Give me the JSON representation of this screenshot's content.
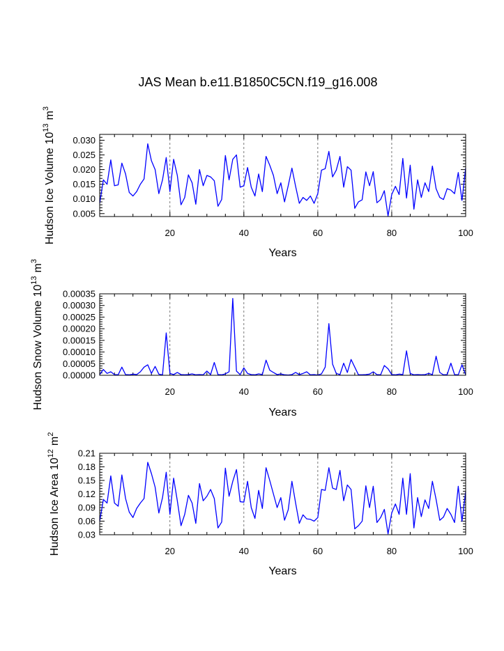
{
  "title": "JAS Mean b.e11.B1850C5CN.f19_g16.008",
  "chart_data": [
    {
      "type": "line",
      "ylabel": "Hudson Ice Volume",
      "ylabel_unit": "10",
      "ylabel_exp": "13",
      "ylabel_unit2": "m",
      "ylabel_exp2": "3",
      "xlabel": "Years",
      "xlim": [
        1,
        100
      ],
      "ylim": [
        0.004,
        0.032
      ],
      "yticks": [
        "0.005",
        "0.010",
        "0.015",
        "0.020",
        "0.025",
        "0.030"
      ],
      "yticks_values": [
        0.005,
        0.01,
        0.015,
        0.02,
        0.025,
        0.03
      ],
      "xticks": [
        "20",
        "40",
        "60",
        "80",
        "100"
      ],
      "xticks_values": [
        20,
        40,
        60,
        80,
        100
      ],
      "ref_lines": [
        20,
        40,
        60,
        80
      ],
      "values": [
        0.0085,
        0.0165,
        0.015,
        0.0233,
        0.0145,
        0.0148,
        0.0222,
        0.0185,
        0.0122,
        0.011,
        0.0125,
        0.015,
        0.0168,
        0.0288,
        0.023,
        0.02,
        0.0118,
        0.0165,
        0.0241,
        0.0125,
        0.0235,
        0.018,
        0.008,
        0.0105,
        0.0182,
        0.0155,
        0.0082,
        0.02,
        0.0145,
        0.018,
        0.0175,
        0.0162,
        0.0075,
        0.0098,
        0.0248,
        0.0165,
        0.0235,
        0.025,
        0.014,
        0.0145,
        0.0207,
        0.014,
        0.011,
        0.0185,
        0.0125,
        0.0245,
        0.0215,
        0.018,
        0.0118,
        0.0155,
        0.009,
        0.0145,
        0.0205,
        0.0143,
        0.0085,
        0.0105,
        0.0095,
        0.011,
        0.0085,
        0.0118,
        0.0198,
        0.0203,
        0.0262,
        0.0175,
        0.0198,
        0.0245,
        0.014,
        0.021,
        0.0198,
        0.0068,
        0.009,
        0.0097,
        0.0192,
        0.0145,
        0.0193,
        0.0087,
        0.0098,
        0.0128,
        0.0042,
        0.0115,
        0.0143,
        0.0115,
        0.0238,
        0.0103,
        0.0215,
        0.0065,
        0.0165,
        0.0105,
        0.0155,
        0.0125,
        0.0212,
        0.0135,
        0.0105,
        0.0098,
        0.0135,
        0.013,
        0.0118,
        0.019,
        0.0095,
        0.0205
      ]
    },
    {
      "type": "line",
      "ylabel": "Hudson Snow Volume",
      "ylabel_unit": "10",
      "ylabel_exp": "13",
      "ylabel_unit2": "m",
      "ylabel_exp2": "3",
      "xlabel": "Years",
      "xlim": [
        1,
        100
      ],
      "ylim": [
        0.0,
        0.00035
      ],
      "yticks": [
        "0.00000",
        "0.00005",
        "0.00010",
        "0.00015",
        "0.00020",
        "0.00025",
        "0.00030",
        "0.00035"
      ],
      "yticks_values": [
        0.0,
        5e-05,
        0.0001,
        0.00015,
        0.0002,
        0.00025,
        0.0003,
        0.00035
      ],
      "xticks": [
        "20",
        "40",
        "60",
        "80",
        "100"
      ],
      "xticks_values": [
        20,
        40,
        60,
        80,
        100
      ],
      "ref_lines": [
        20,
        40,
        60,
        80
      ],
      "values": [
        3e-06,
        2.5e-05,
        8e-06,
        1.5e-05,
        3e-06,
        2e-06,
        3.5e-05,
        3e-06,
        2e-06,
        5e-06,
        3e-06,
        1.5e-05,
        3.5e-05,
        4.5e-05,
        8e-06,
        3.8e-05,
        5e-06,
        2e-06,
        0.000182,
        8e-06,
        3e-06,
        1.2e-05,
        3e-06,
        2e-06,
        3e-06,
        6e-06,
        2e-06,
        3e-06,
        2e-06,
        1.8e-05,
        3e-06,
        5.5e-05,
        3e-06,
        2e-06,
        6e-06,
        1.5e-05,
        0.00033,
        1.8e-05,
        3e-06,
        3.2e-05,
        8e-06,
        3e-06,
        2e-06,
        6e-06,
        3e-06,
        6.5e-05,
        2.2e-05,
        1.2e-05,
        3e-06,
        6e-06,
        2e-06,
        1e-06,
        3e-06,
        1.2e-05,
        3e-06,
        8e-06,
        1.5e-05,
        2e-06,
        3e-06,
        1e-06,
        6e-06,
        3.5e-05,
        0.000222,
        4.8e-05,
        8e-06,
        3e-06,
        5.2e-05,
        1.2e-05,
        6.8e-05,
        3.5e-05,
        2e-06,
        2e-06,
        3e-06,
        5e-06,
        1.5e-05,
        3e-06,
        2e-06,
        4.2e-05,
        2.8e-05,
        3e-06,
        2e-06,
        5e-06,
        3e-06,
        0.000105,
        8e-06,
        2e-06,
        3e-06,
        2e-06,
        3e-06,
        8e-06,
        3e-06,
        8.2e-05,
        1.2e-05,
        2e-06,
        3e-06,
        5.2e-05,
        3e-06,
        2e-06,
        4.5e-05,
        2e-06
      ]
    },
    {
      "type": "line",
      "ylabel": "Hudson Ice Area",
      "ylabel_unit": "10",
      "ylabel_exp": "12",
      "ylabel_unit2": "m",
      "ylabel_exp2": "2",
      "xlabel": "Years",
      "xlim": [
        1,
        100
      ],
      "ylim": [
        0.03,
        0.21
      ],
      "yticks": [
        "0.03",
        "0.06",
        "0.09",
        "0.12",
        "0.15",
        "0.18",
        "0.21"
      ],
      "yticks_values": [
        0.03,
        0.06,
        0.09,
        0.12,
        0.15,
        0.18,
        0.21
      ],
      "xticks": [
        "20",
        "40",
        "60",
        "80",
        "100"
      ],
      "xticks_values": [
        20,
        40,
        60,
        80,
        100
      ],
      "ref_lines": [
        20,
        40,
        60,
        80
      ],
      "values": [
        0.06,
        0.108,
        0.1,
        0.16,
        0.1,
        0.093,
        0.162,
        0.11,
        0.08,
        0.068,
        0.088,
        0.1,
        0.11,
        0.19,
        0.165,
        0.135,
        0.078,
        0.112,
        0.168,
        0.075,
        0.155,
        0.105,
        0.05,
        0.075,
        0.117,
        0.1,
        0.055,
        0.143,
        0.105,
        0.115,
        0.13,
        0.11,
        0.045,
        0.058,
        0.177,
        0.115,
        0.148,
        0.174,
        0.103,
        0.102,
        0.148,
        0.09,
        0.066,
        0.128,
        0.088,
        0.178,
        0.15,
        0.12,
        0.09,
        0.112,
        0.062,
        0.085,
        0.148,
        0.1,
        0.055,
        0.074,
        0.065,
        0.064,
        0.06,
        0.068,
        0.13,
        0.128,
        0.178,
        0.133,
        0.13,
        0.172,
        0.105,
        0.14,
        0.13,
        0.043,
        0.05,
        0.06,
        0.138,
        0.09,
        0.137,
        0.057,
        0.068,
        0.086,
        0.032,
        0.078,
        0.098,
        0.075,
        0.155,
        0.075,
        0.165,
        0.045,
        0.112,
        0.07,
        0.107,
        0.088,
        0.148,
        0.108,
        0.062,
        0.069,
        0.088,
        0.075,
        0.057,
        0.137,
        0.06,
        0.125
      ]
    }
  ]
}
